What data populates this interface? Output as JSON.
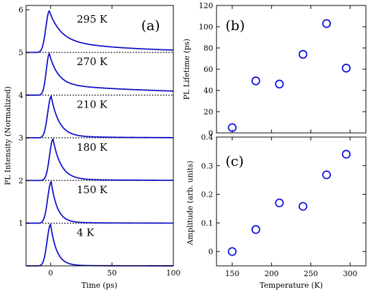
{
  "chart_data": [
    {
      "id": "a",
      "type": "line",
      "panel_label": "(a)",
      "xlabel": "Time (ps)",
      "ylabel": "PL Intensity (Normalized)",
      "xlim": [
        -20,
        100
      ],
      "ylim": [
        0,
        6.1
      ],
      "xticks": [
        "0",
        "50",
        "100"
      ],
      "yticks": [
        "1",
        "2",
        "3",
        "4",
        "5",
        "6"
      ],
      "baselines": [
        1,
        2,
        3,
        4,
        5
      ],
      "series_color": "#1010c8",
      "series": [
        {
          "name": "4 K",
          "offset": 0,
          "peak_time": 0,
          "rise": 4,
          "fast_decay": 5,
          "slow_fraction": 0.01,
          "slow_decay": 40
        },
        {
          "name": "150 K",
          "offset": 1,
          "peak_time": 0.5,
          "rise": 4,
          "fast_decay": 5,
          "slow_fraction": 0.02,
          "slow_decay": 40
        },
        {
          "name": "180 K",
          "offset": 2,
          "peak_time": 2,
          "rise": 4,
          "fast_decay": 6.5,
          "slow_fraction": 0.03,
          "slow_decay": 50
        },
        {
          "name": "210 K",
          "offset": 3,
          "peak_time": 0.5,
          "rise": 4,
          "fast_decay": 6.5,
          "slow_fraction": 0.04,
          "slow_decay": 45
        },
        {
          "name": "270 K",
          "offset": 4,
          "peak_time": -1,
          "rise": 3.5,
          "fast_decay": 7,
          "slow_fraction": 0.26,
          "slow_decay": 103
        },
        {
          "name": "295 K",
          "offset": 5,
          "peak_time": -1,
          "rise": 4,
          "fast_decay": 9,
          "slow_fraction": 0.3,
          "slow_decay": 61
        }
      ]
    },
    {
      "id": "b",
      "type": "scatter",
      "panel_label": "(b)",
      "ylabel": "PL Lifetime (ps)",
      "xlim": [
        130,
        320
      ],
      "ylim": [
        0,
        120
      ],
      "yticks": [
        "0",
        "20",
        "40",
        "60",
        "80",
        "100",
        "120"
      ],
      "points": [
        {
          "x": 150,
          "y": 5
        },
        {
          "x": 180,
          "y": 49
        },
        {
          "x": 210,
          "y": 46
        },
        {
          "x": 240,
          "y": 74
        },
        {
          "x": 270,
          "y": 103
        },
        {
          "x": 295,
          "y": 61
        }
      ],
      "marker_color": "#1010e0"
    },
    {
      "id": "c",
      "type": "scatter",
      "panel_label": "(c)",
      "xlabel": "Temperature (K)",
      "ylabel": "Amplitude (arb. units)",
      "xlim": [
        130,
        320
      ],
      "ylim": [
        -0.05,
        0.4
      ],
      "xticks": [
        "150",
        "200",
        "250",
        "300"
      ],
      "yticks": [
        "0",
        "0.1",
        "0.2",
        "0.3",
        "0.4"
      ],
      "points": [
        {
          "x": 150,
          "y": 0.0
        },
        {
          "x": 180,
          "y": 0.077
        },
        {
          "x": 210,
          "y": 0.17
        },
        {
          "x": 240,
          "y": 0.158
        },
        {
          "x": 270,
          "y": 0.268
        },
        {
          "x": 295,
          "y": 0.34
        }
      ],
      "marker_color": "#1010e0"
    }
  ]
}
